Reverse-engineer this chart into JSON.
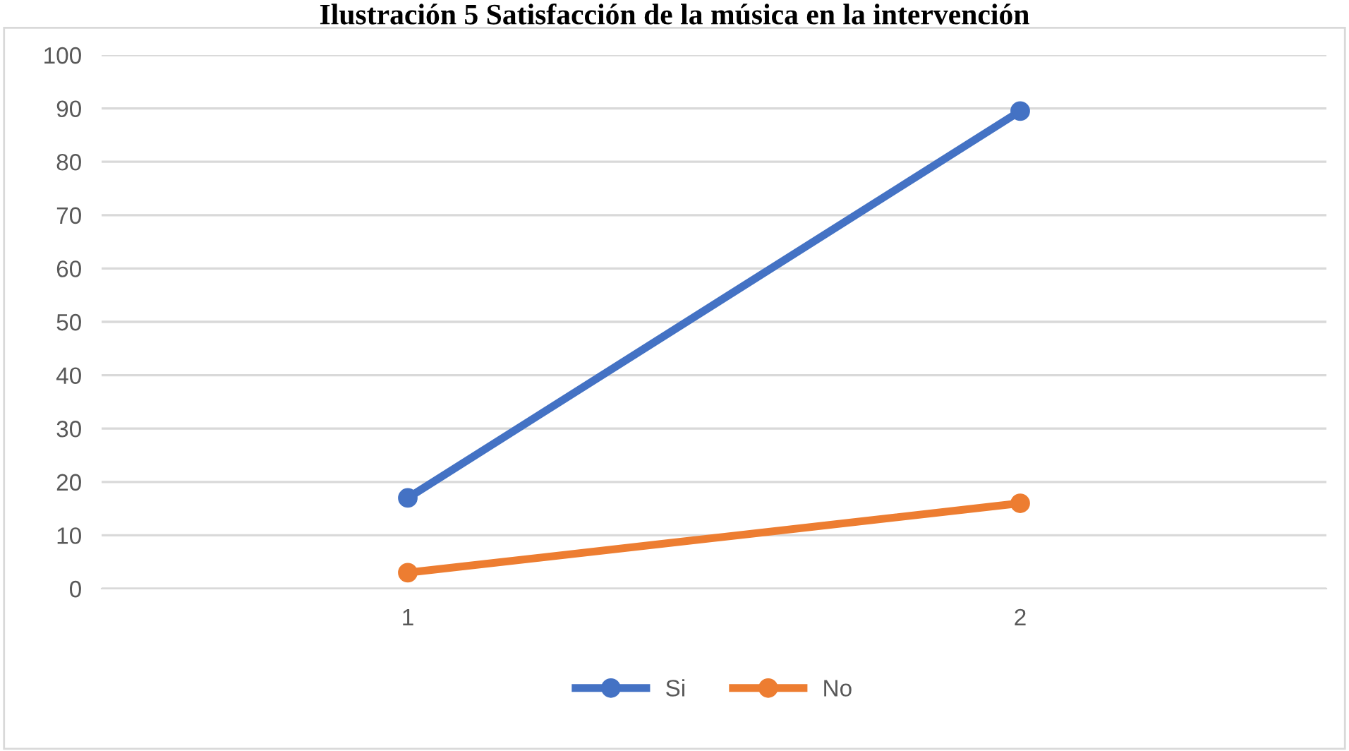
{
  "chart_data": {
    "type": "line",
    "title": "Ilustración 5 Satisfacción de la música en la intervención",
    "categories": [
      "1",
      "2"
    ],
    "series": [
      {
        "name": "Si",
        "color": "#4472c4",
        "values": [
          17,
          89.5
        ]
      },
      {
        "name": "No",
        "color": "#ed7d31",
        "values": [
          3,
          16
        ]
      }
    ],
    "ylim": [
      0,
      100
    ],
    "yticks": [
      0,
      10,
      20,
      30,
      40,
      50,
      60,
      70,
      80,
      90,
      100
    ],
    "grid": "y",
    "legend": "bottom",
    "marker": "circle",
    "line_style": "solid"
  }
}
